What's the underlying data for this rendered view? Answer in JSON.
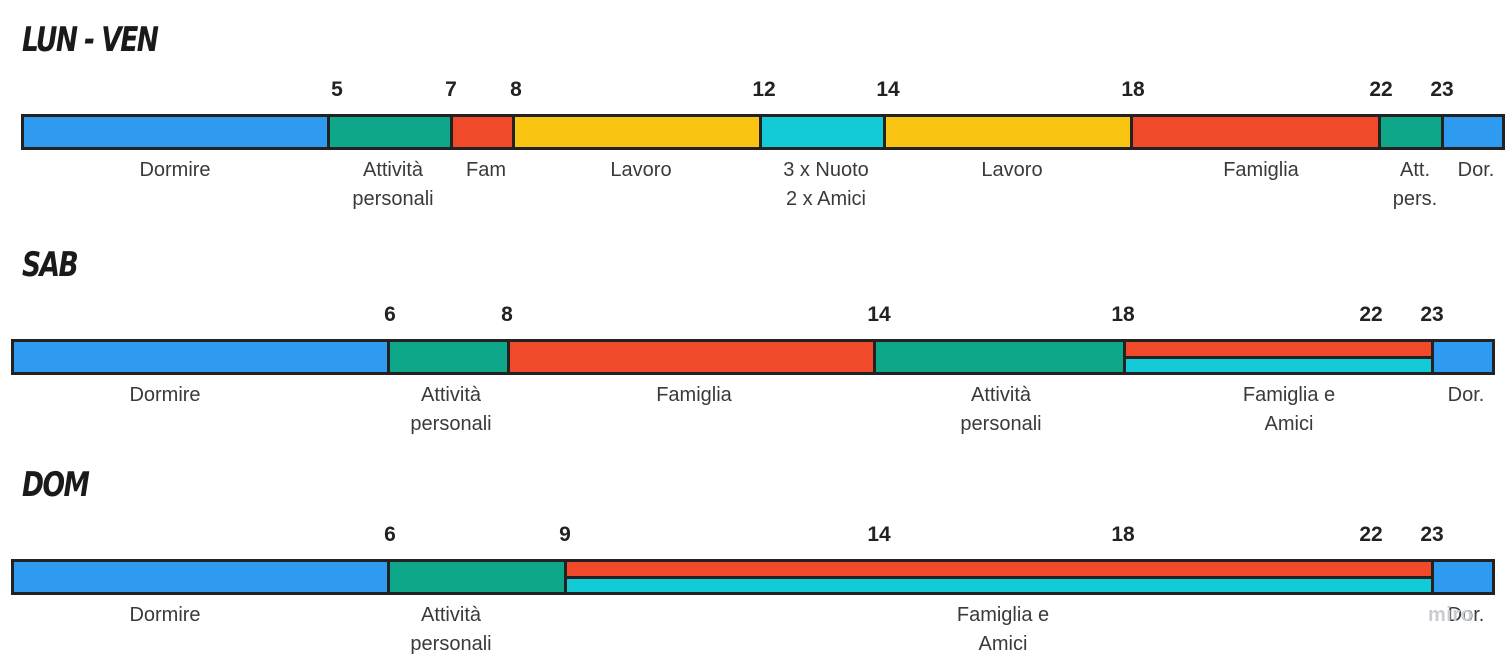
{
  "colors": {
    "sleep": "#2f9bf0",
    "personal": "#0ea78a",
    "family": "#f04a2a",
    "work": "#f9c412",
    "leisure": "#13cbd6",
    "border": "#222222"
  },
  "sections": [
    {
      "id": "lun-ven",
      "title": "LUN - VEN",
      "ticks": [
        "5",
        "7",
        "8",
        "12",
        "14",
        "18",
        "22",
        "23"
      ],
      "segments": [
        {
          "label": "Dormire",
          "color": "sleep"
        },
        {
          "label": "Attività\npersonali",
          "color": "personal"
        },
        {
          "label": "Fam",
          "color": "family"
        },
        {
          "label": "Lavoro",
          "color": "work"
        },
        {
          "label": "3 x Nuoto\n2 x Amici",
          "color": "leisure"
        },
        {
          "label": "Lavoro",
          "color": "work"
        },
        {
          "label": "Famiglia",
          "color": "family"
        },
        {
          "label": "Att.\npers.",
          "color": "personal"
        },
        {
          "label": "Dor.",
          "color": "sleep"
        }
      ]
    },
    {
      "id": "sab",
      "title": "SAB",
      "ticks": [
        "6",
        "8",
        "14",
        "18",
        "22",
        "23"
      ],
      "segments": [
        {
          "label": "Dormire",
          "color": "sleep"
        },
        {
          "label": "Attività\npersonali",
          "color": "personal"
        },
        {
          "label": "Famiglia",
          "color": "family"
        },
        {
          "label": "Attività\npersonali",
          "color": "personal"
        },
        {
          "label": "Famiglia e\nAmici",
          "color": "family",
          "split": "leisure"
        },
        {
          "label": "Dor.",
          "color": "sleep"
        }
      ]
    },
    {
      "id": "dom",
      "title": "DOM",
      "ticks": [
        "6",
        "9",
        "14",
        "18",
        "22",
        "23"
      ],
      "segments": [
        {
          "label": "Dormire",
          "color": "sleep"
        },
        {
          "label": "Attività\npersonali",
          "color": "personal"
        },
        {
          "label": "Famiglia e\nAmici",
          "color": "family",
          "split": "leisure"
        },
        {
          "label": "Dor.",
          "color": "sleep"
        }
      ]
    }
  ],
  "watermark": "miro"
}
